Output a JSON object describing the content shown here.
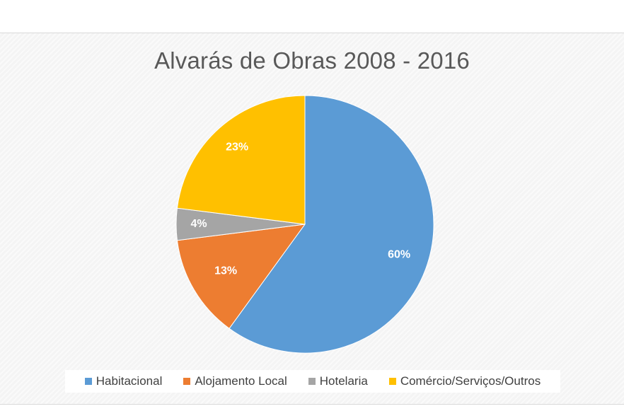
{
  "chart_data": {
    "type": "pie",
    "title": "Alvarás de Obras 2008 - 2016",
    "categories": [
      "Habitacional",
      "Alojamento Local",
      "Hotelaria",
      "Comércio/Serviços/Outros"
    ],
    "values": [
      60,
      13,
      4,
      23
    ],
    "labels": [
      "60%",
      "13%",
      "4%",
      "23%"
    ],
    "colors": [
      "#5b9bd5",
      "#ed7d31",
      "#a5a5a5",
      "#ffc000"
    ],
    "start_angle_deg": 0,
    "direction": "clockwise",
    "legend_position": "bottom"
  }
}
